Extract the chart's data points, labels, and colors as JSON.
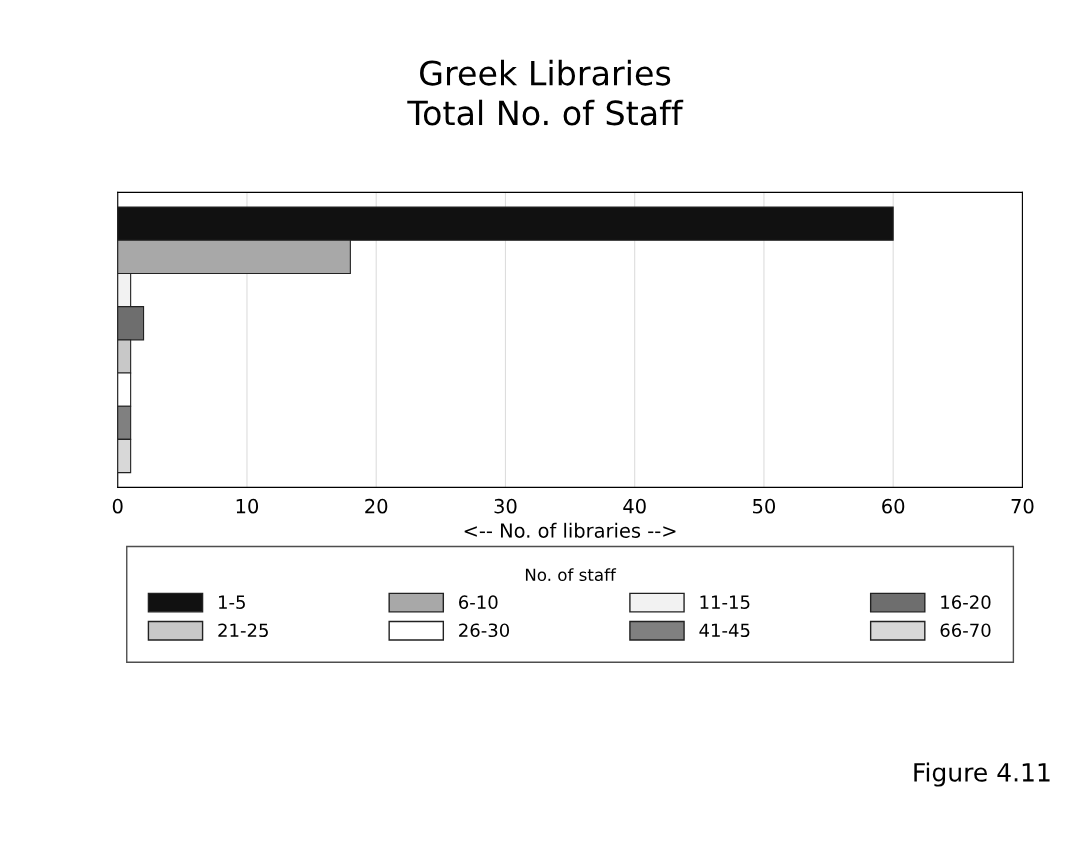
{
  "chart_data": {
    "type": "bar",
    "orientation": "horizontal",
    "title": "Greek Libraries\nTotal No. of Staff",
    "xlabel": "<-- No. of libraries -->",
    "legend_title": "No. of staff",
    "categories": [
      null
    ],
    "series": [
      {
        "name": "1-5",
        "color": "#111111",
        "values": [
          60
        ]
      },
      {
        "name": "6-10",
        "color": "#a8a8a8",
        "values": [
          18
        ]
      },
      {
        "name": "11-15",
        "color": "#f2f2f2",
        "values": [
          1
        ]
      },
      {
        "name": "16-20",
        "color": "#6e6e6e",
        "values": [
          2
        ]
      },
      {
        "name": "21-25",
        "color": "#c8c8c8",
        "values": [
          1
        ]
      },
      {
        "name": "26-30",
        "color": "#ffffff",
        "values": [
          1
        ]
      },
      {
        "name": "41-45",
        "color": "#808080",
        "values": [
          1
        ]
      },
      {
        "name": "66-70",
        "color": "#d8d8d8",
        "values": [
          1
        ]
      }
    ],
    "xlim": [
      0,
      70
    ],
    "xticks": [
      0,
      10,
      20,
      30,
      40,
      50,
      60,
      70
    ],
    "grid": "x",
    "legend": "bottom",
    "annotations": [
      "Figure 4.11"
    ]
  }
}
